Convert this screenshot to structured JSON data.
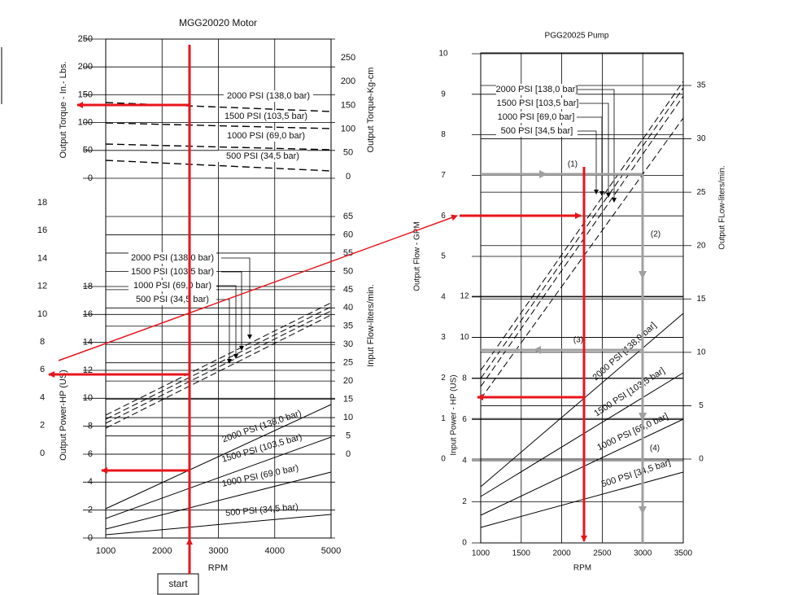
{
  "motor": {
    "title": "MGG20020 Motor",
    "x_label": "RPM",
    "x_ticks": [
      1000,
      2000,
      3000,
      4000,
      5000
    ],
    "torque_label": "Output Torque - In.- Lbs.",
    "torque_ticks": [
      250,
      200,
      150,
      100,
      50,
      0
    ],
    "torque_kgcm_label": "Output Torque-Kg-cm",
    "torque_kgcm_ticks": [
      250,
      200,
      150,
      100,
      50,
      0
    ],
    "power_label": "Output Power-HP (US)",
    "power_ticks": [
      18,
      16,
      14,
      12,
      10,
      8,
      6,
      4,
      2,
      0
    ],
    "gpm_ticks": [
      18,
      16,
      14,
      12,
      10,
      8,
      6,
      4,
      2,
      0
    ],
    "flow_label": "Input Flow-liters/min.",
    "flow_ticks": [
      65,
      60,
      55,
      50,
      45,
      40,
      35,
      30,
      25,
      20,
      15,
      10,
      5,
      0
    ],
    "torque_curves": [
      "2000 PSI (138,0 bar)",
      "1500 PSI (103,5 bar)",
      "1000 PSI (69,0 bar)",
      "500 PSI (34,5 bar)"
    ],
    "flow_curves": [
      "2000 PSI (138,0 bar)",
      "1500 PSI (103,5 bar)",
      "1000 PSI (69,0 bar)",
      "500 PSI (34,5 bar)"
    ],
    "power_curves": [
      "2000 PSI (138,0 bar)",
      "1500 PSI (103,5 bar)",
      "1000 PSI (69,0 bar)",
      "500 PSI (34,5 bar)"
    ],
    "start": "start"
  },
  "pump": {
    "title": "PGG20025 Pump",
    "x_label": "RPM",
    "x_ticks": [
      1000,
      1500,
      2000,
      2500,
      3000,
      3500
    ],
    "gpm_label": "Output Flow - GPM",
    "gpm_ticks": [
      10,
      9,
      8,
      7,
      6,
      5,
      4,
      3,
      2,
      1,
      0
    ],
    "power_label": "Input Power - HP (US)",
    "power_ticks": [
      12,
      10,
      8,
      6,
      4,
      2,
      0
    ],
    "flow_label": "Output FLow-liters/min.",
    "flow_ticks": [
      35,
      30,
      25,
      20,
      15,
      10,
      5,
      0
    ],
    "flow_curves": [
      "2000 PSI [138,0 bar]",
      "1500 PSI [103,5 bar]",
      "1000 PSI [69,0 bar]",
      "500 PSI [34,5 bar]"
    ],
    "power_curves": [
      "2000 PSI [138,0 bar]",
      "1500 PSI [103,5 bar]",
      "1000 PSI [69,0 bar]",
      "500 PSI [34,5 bar]"
    ],
    "steps": [
      "(1)",
      "(2)",
      "(3)",
      "(4)"
    ]
  }
}
